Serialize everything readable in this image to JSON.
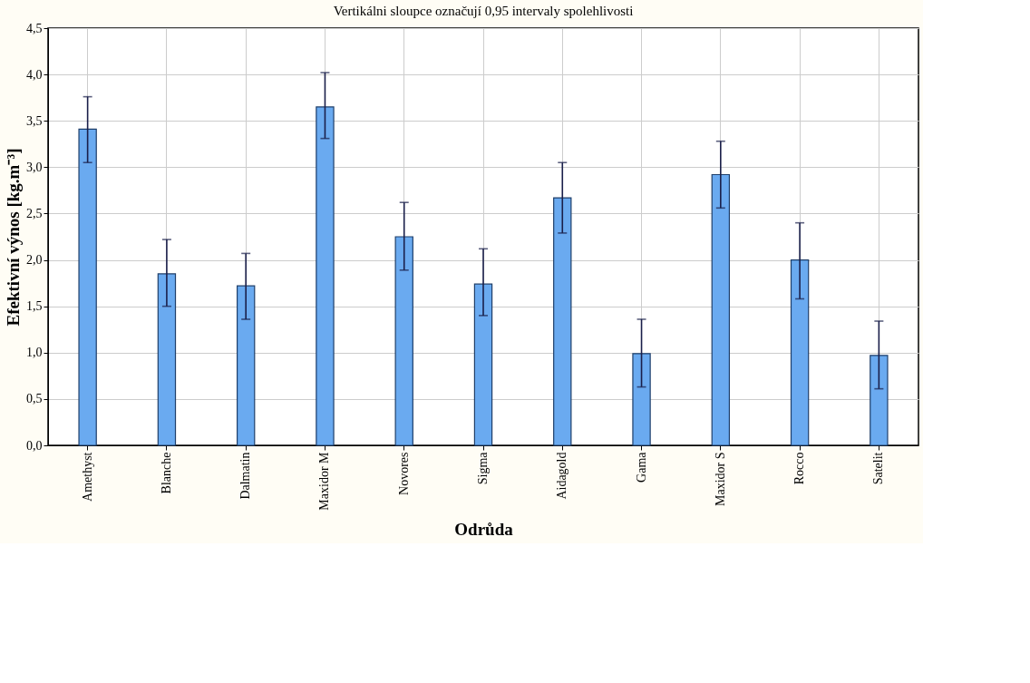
{
  "chart_data": {
    "type": "bar",
    "title": "Vertikálni sloupce označují 0,95 intervaly spolehlivosti",
    "xlabel": "Odrůda",
    "ylabel": "Efektivní výnos [kg.m⁻³]",
    "categories": [
      "Amethyst",
      "Blanche",
      "Dalmatin",
      "Maxidor M",
      "Novores",
      "Sigma",
      "Aidagold",
      "Gama",
      "Maxidor S",
      "Rocco",
      "Satelit"
    ],
    "values": [
      3.41,
      1.85,
      1.72,
      3.65,
      2.25,
      1.74,
      2.67,
      0.99,
      2.92,
      2.0,
      0.97
    ],
    "errors": [
      [
        3.05,
        3.76
      ],
      [
        1.5,
        2.22
      ],
      [
        1.36,
        2.07
      ],
      [
        3.31,
        4.02
      ],
      [
        1.89,
        2.62
      ],
      [
        1.4,
        2.12
      ],
      [
        2.29,
        3.05
      ],
      [
        0.63,
        1.36
      ],
      [
        2.56,
        3.28
      ],
      [
        1.58,
        2.4
      ],
      [
        0.61,
        1.34
      ]
    ],
    "color": "#6aaaf0",
    "ylim": [
      0,
      4.5
    ],
    "yticks": [
      {
        "value": 0,
        "label": "0,0"
      },
      {
        "value": 0.5,
        "label": "0,5"
      },
      {
        "value": 1,
        "label": "1,0"
      },
      {
        "value": 1.5,
        "label": "1,5"
      },
      {
        "value": 2,
        "label": "2,0"
      },
      {
        "value": 2.5,
        "label": "2,5"
      },
      {
        "value": 3,
        "label": "3,0"
      },
      {
        "value": 3.5,
        "label": "3,5"
      },
      {
        "value": 4,
        "label": "4,0"
      },
      {
        "value": 4.5,
        "label": "4,5"
      }
    ],
    "grid": true
  }
}
